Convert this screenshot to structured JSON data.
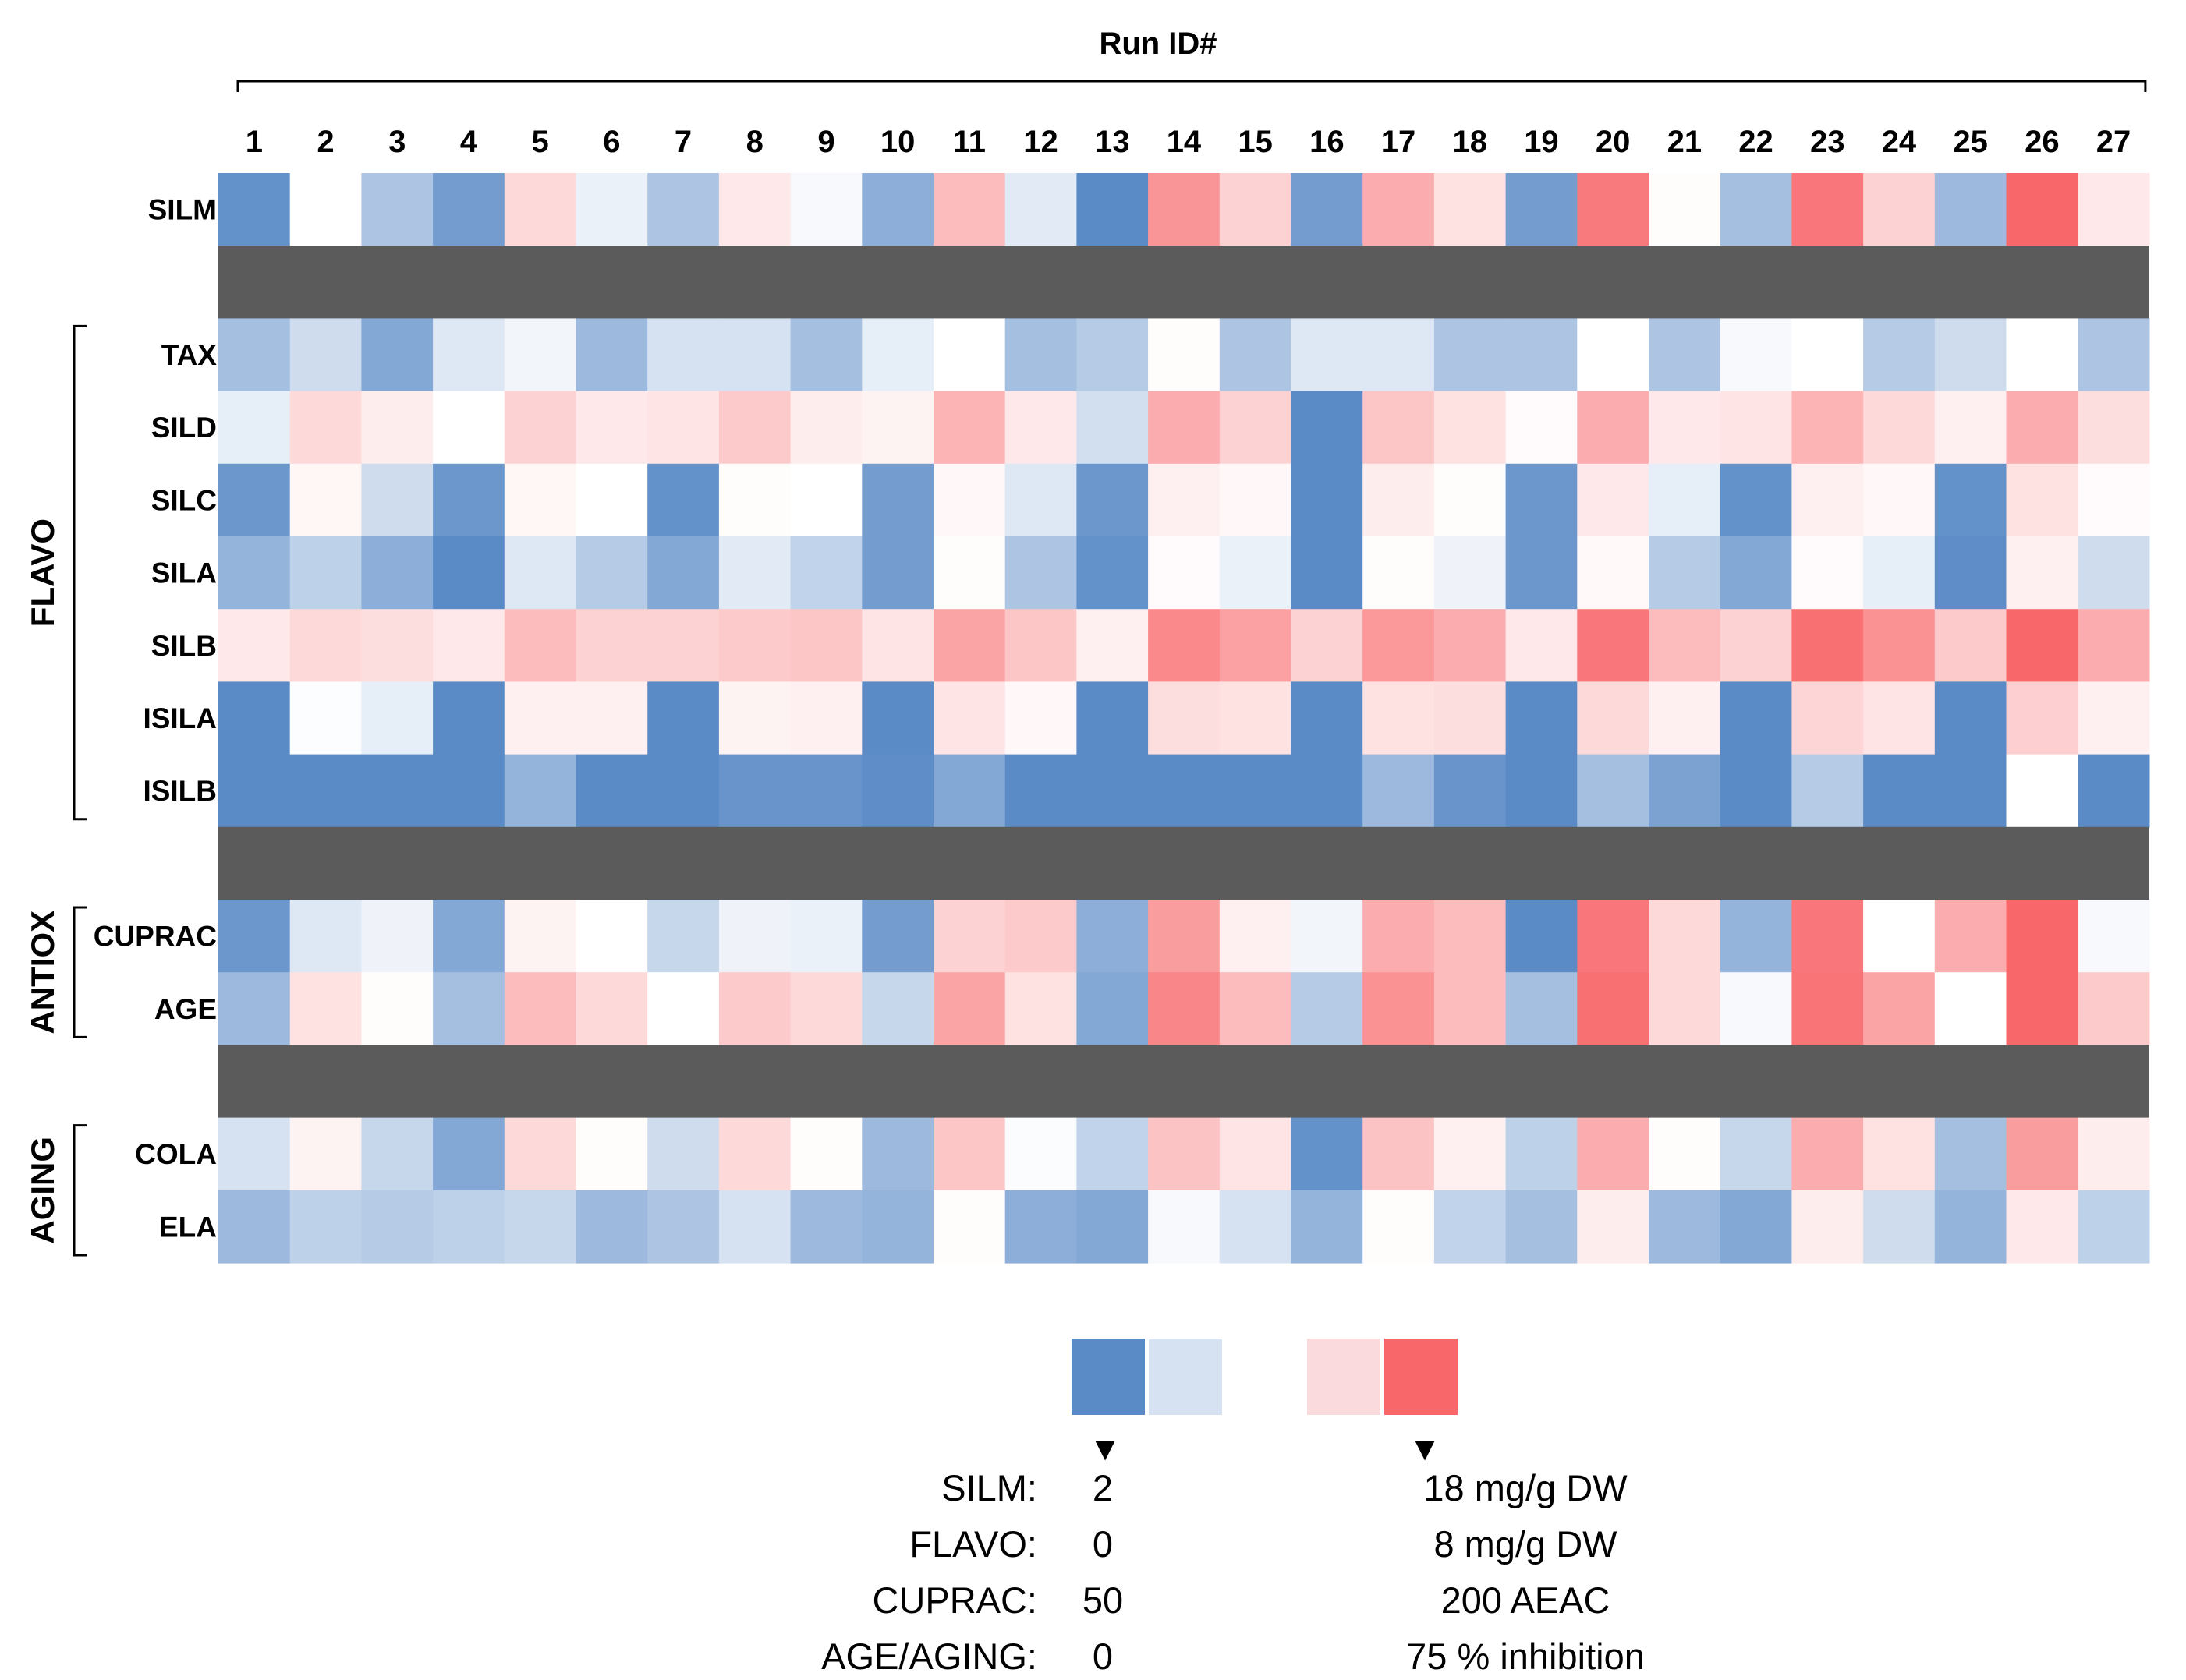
{
  "chart_data": {
    "type": "heatmap",
    "title": "Run ID#",
    "runs": [
      "1",
      "2",
      "3",
      "4",
      "5",
      "6",
      "7",
      "8",
      "9",
      "10",
      "11",
      "12",
      "13",
      "14",
      "15",
      "16",
      "17",
      "18",
      "19",
      "20",
      "21",
      "22",
      "23",
      "24",
      "25",
      "26",
      "27"
    ],
    "scale_comment": "values are relative intensities: -1 = strong blue (low end), 0 = white, +1 = strong red (high end)",
    "rows": [
      {
        "name": "SILM",
        "values": [
          -0.95,
          0,
          -0.5,
          -0.85,
          0.25,
          -0.12,
          -0.5,
          0.15,
          -0.05,
          -0.7,
          0.45,
          -0.18,
          -1.0,
          0.7,
          0.3,
          -0.85,
          0.55,
          0.2,
          -0.85,
          0.88,
          0.02,
          -0.55,
          0.9,
          0.3,
          -0.6,
          1.0,
          0.15
        ]
      },
      {
        "gap": true
      },
      {
        "name": "TAX",
        "values": [
          -0.55,
          -0.3,
          -0.75,
          -0.2,
          -0.08,
          -0.6,
          -0.25,
          -0.25,
          -0.55,
          -0.15,
          0,
          -0.55,
          -0.45,
          0.02,
          -0.5,
          -0.2,
          -0.2,
          -0.5,
          -0.5,
          0,
          -0.5,
          -0.05,
          0,
          -0.45,
          -0.3,
          0,
          -0.5
        ]
      },
      {
        "name": "SILD",
        "values": [
          -0.15,
          0.25,
          0.12,
          0,
          0.3,
          0.15,
          0.18,
          0.35,
          0.12,
          0.08,
          0.5,
          0.15,
          -0.28,
          0.55,
          0.3,
          -1.0,
          0.38,
          0.2,
          0.03,
          0.55,
          0.15,
          0.18,
          0.5,
          0.25,
          0.1,
          0.55,
          0.22
        ]
      },
      {
        "name": "SILC",
        "values": [
          -0.9,
          0.06,
          -0.3,
          -0.9,
          0.06,
          0,
          -0.95,
          0.02,
          0,
          -0.85,
          0.05,
          -0.2,
          -0.9,
          0.1,
          0.05,
          -1.0,
          0.12,
          0.02,
          -0.9,
          0.15,
          -0.15,
          -0.95,
          0.1,
          0.05,
          -0.95,
          0.2,
          0.03
        ]
      },
      {
        "name": "SILA",
        "values": [
          -0.65,
          -0.4,
          -0.7,
          -1.0,
          -0.2,
          -0.45,
          -0.75,
          -0.18,
          -0.38,
          -0.85,
          0.02,
          -0.5,
          -0.95,
          0.03,
          -0.12,
          -1.0,
          0.02,
          -0.1,
          -0.9,
          0.04,
          -0.45,
          -0.75,
          0.03,
          -0.15,
          -0.98,
          0.1,
          -0.3
        ]
      },
      {
        "name": "SILB",
        "values": [
          0.15,
          0.25,
          0.22,
          0.15,
          0.45,
          0.3,
          0.3,
          0.35,
          0.38,
          0.18,
          0.6,
          0.38,
          0.1,
          0.78,
          0.62,
          0.3,
          0.68,
          0.55,
          0.15,
          0.9,
          0.45,
          0.3,
          0.95,
          0.72,
          0.35,
          1.0,
          0.55
        ]
      },
      {
        "name": "ISILA",
        "values": [
          -1.0,
          -0.02,
          -0.15,
          -1.0,
          0.1,
          0.1,
          -1.0,
          0.08,
          0.1,
          -1.0,
          0.18,
          0.05,
          -1.0,
          0.22,
          0.2,
          -1.0,
          0.2,
          0.22,
          -1.0,
          0.25,
          0.1,
          -1.0,
          0.28,
          0.18,
          -1.0,
          0.32,
          0.1
        ]
      },
      {
        "name": "ISILB",
        "values": [
          -1.0,
          -1.0,
          -1.0,
          -1.0,
          -0.65,
          -1.0,
          -1.0,
          -0.92,
          -0.92,
          -0.98,
          -0.75,
          -1.0,
          -1.0,
          -1.0,
          -1.0,
          -1.0,
          -0.6,
          -0.92,
          -1.0,
          -0.55,
          -0.8,
          -1.0,
          -0.45,
          -1.0,
          -1.0,
          0,
          -1.0
        ]
      },
      {
        "gap": true
      },
      {
        "name": "CUPRAC",
        "values": [
          -0.9,
          -0.2,
          -0.1,
          -0.75,
          0.08,
          0,
          -0.35,
          -0.1,
          -0.12,
          -0.85,
          0.3,
          0.35,
          -0.7,
          0.65,
          0.1,
          -0.08,
          0.55,
          0.45,
          -1.0,
          0.9,
          0.25,
          -0.65,
          0.9,
          0,
          0.55,
          1.0,
          -0.05
        ]
      },
      {
        "name": "AGE",
        "values": [
          -0.6,
          0.2,
          0.02,
          -0.55,
          0.45,
          0.25,
          0,
          0.35,
          0.25,
          -0.35,
          0.6,
          0.2,
          -0.75,
          0.8,
          0.45,
          -0.45,
          0.72,
          0.45,
          -0.55,
          0.95,
          0.25,
          -0.05,
          0.92,
          0.6,
          0,
          1.0,
          0.35
        ]
      },
      {
        "gap": true
      },
      {
        "name": "COLA",
        "values": [
          -0.25,
          0.08,
          -0.35,
          -0.75,
          0.25,
          0.02,
          -0.3,
          0.25,
          0.02,
          -0.6,
          0.38,
          -0.03,
          -0.38,
          0.4,
          0.18,
          -0.95,
          0.4,
          0.1,
          -0.4,
          0.55,
          0.02,
          -0.35,
          0.55,
          0.2,
          -0.55,
          0.65,
          0.12
        ]
      },
      {
        "name": "ELA",
        "values": [
          -0.6,
          -0.4,
          -0.45,
          -0.4,
          -0.35,
          -0.6,
          -0.5,
          -0.25,
          -0.6,
          -0.65,
          0.02,
          -0.7,
          -0.75,
          -0.05,
          -0.25,
          -0.65,
          0.02,
          -0.38,
          -0.55,
          0.12,
          -0.6,
          -0.75,
          0.12,
          -0.3,
          -0.65,
          0.15,
          -0.4
        ]
      }
    ],
    "groups": [
      {
        "name": "FLAVO",
        "first_row": "TAX",
        "last_row": "ISILB"
      },
      {
        "name": "ANTIOX",
        "first_row": "CUPRAC",
        "last_row": "AGE"
      },
      {
        "name": "AGING",
        "first_row": "COLA",
        "last_row": "ELA"
      }
    ],
    "colors": {
      "blue_strong": "#5b8bc7",
      "blue_light": "#d6e2f2",
      "white": "#ffffff",
      "red_light": "#fadadd",
      "red_strong": "#f8686b",
      "gap": "#5b5b5b",
      "text": "#000000"
    },
    "legend": {
      "swatches": [
        "blue_strong",
        "blue_light",
        "red_light",
        "red_strong"
      ],
      "marker": "▼",
      "rows": [
        {
          "label": "SILM:",
          "low": "2",
          "high": "18 mg/g DW"
        },
        {
          "label": "FLAVO:",
          "low": "0",
          "high": "8 mg/g DW"
        },
        {
          "label": "CUPRAC:",
          "low": "50",
          "high": "200 AEAC"
        },
        {
          "label": "AGE/AGING:",
          "low": "0",
          "high": "75 % inhibition"
        }
      ]
    }
  }
}
